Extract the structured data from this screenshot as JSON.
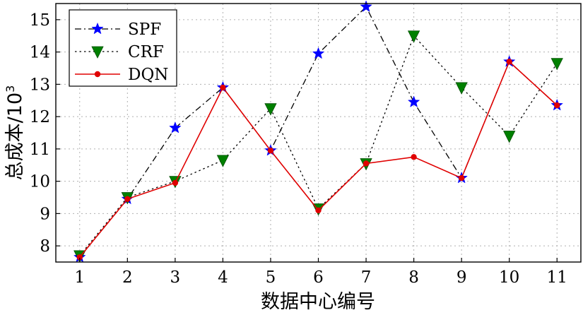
{
  "chart_data": {
    "type": "line",
    "x": [
      1,
      2,
      3,
      4,
      5,
      6,
      7,
      8,
      9,
      10,
      11
    ],
    "xlabel": "数据中心编号",
    "ylabel": "总成本/10",
    "ylabel_sup": "3",
    "xlim": [
      0.5,
      11.5
    ],
    "ylim": [
      7.5,
      15.5
    ],
    "xticks": [
      "1",
      "2",
      "3",
      "4",
      "5",
      "6",
      "7",
      "8",
      "9",
      "10",
      "11"
    ],
    "yticks": [
      "8",
      "9",
      "10",
      "11",
      "12",
      "13",
      "14",
      "15"
    ],
    "grid": true,
    "legend_position": "top-left",
    "series": [
      {
        "name": "SPF",
        "values": [
          7.65,
          9.45,
          11.65,
          12.9,
          10.95,
          13.95,
          15.4,
          12.45,
          10.1,
          13.7,
          12.35
        ],
        "color": "#000000",
        "marker_color": "#0000ff",
        "line_style": "dashdot",
        "marker": "star"
      },
      {
        "name": "CRF",
        "values": [
          7.7,
          9.5,
          10.0,
          10.65,
          12.25,
          9.15,
          10.55,
          14.5,
          12.9,
          11.4,
          13.65
        ],
        "color": "#000000",
        "marker_color": "#008000",
        "line_style": "dotted",
        "marker": "triangle-down"
      },
      {
        "name": "DQN",
        "values": [
          7.65,
          9.45,
          9.95,
          12.9,
          10.95,
          9.1,
          10.55,
          10.75,
          10.1,
          13.7,
          12.35
        ],
        "color": "#e00000",
        "marker_color": "#e00000",
        "line_style": "solid",
        "marker": "circle"
      }
    ]
  }
}
